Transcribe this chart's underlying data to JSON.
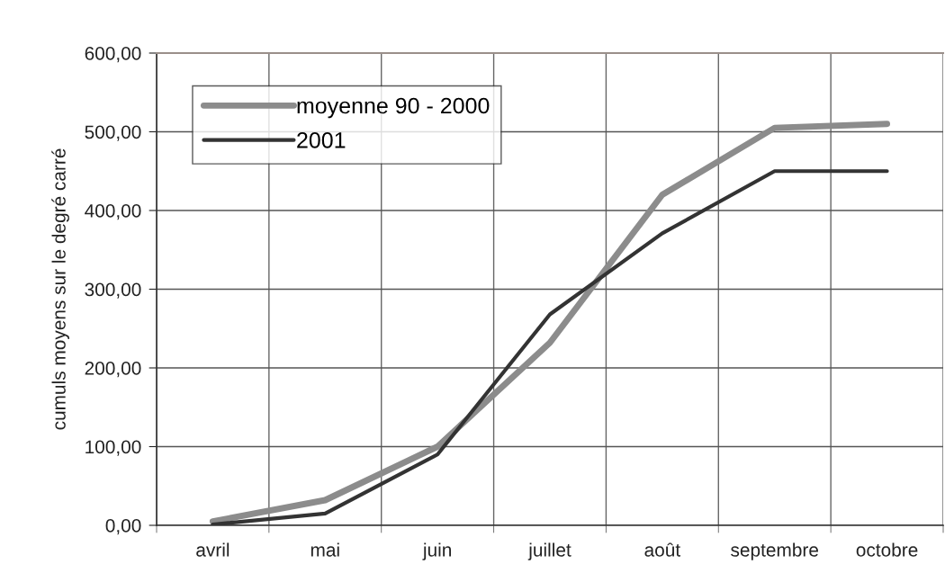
{
  "chart_data": {
    "type": "line",
    "ylabel": "cumuls moyens sur le degré carré",
    "categories": [
      "avril",
      "mai",
      "juin",
      "juillet",
      "août",
      "septembre",
      "octobre"
    ],
    "series": [
      {
        "name": "moyenne 90 - 2000",
        "color": "#8c8c8c",
        "values": [
          5,
          32,
          100,
          232,
          420,
          505,
          510
        ]
      },
      {
        "name": "2001",
        "color": "#333333",
        "values": [
          1,
          15,
          90,
          268,
          371,
          450,
          450
        ]
      }
    ],
    "ylim": [
      0,
      600
    ],
    "yticks": [
      {
        "value": 0,
        "label": "0,00"
      },
      {
        "value": 100,
        "label": "100,00"
      },
      {
        "value": 200,
        "label": "200,00"
      },
      {
        "value": 300,
        "label": "300,00"
      },
      {
        "value": 400,
        "label": "400,00"
      },
      {
        "value": 500,
        "label": "500,00"
      },
      {
        "value": 600,
        "label": "600,00"
      }
    ],
    "grid": true,
    "legend": "top left",
    "marker": "none",
    "line_style": "solid"
  }
}
